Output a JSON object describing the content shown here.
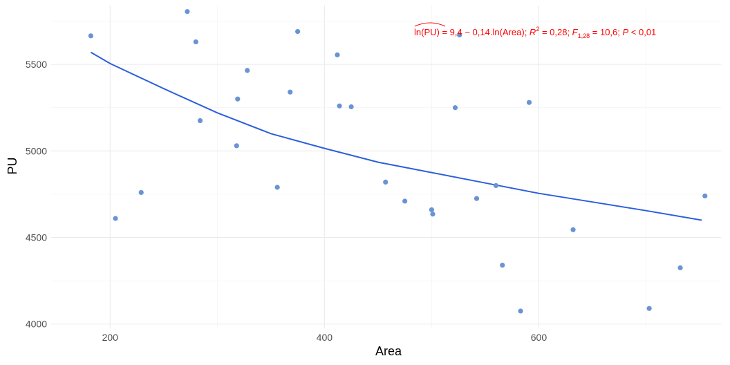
{
  "chart_data": {
    "type": "scatter",
    "title": "",
    "xlabel": "Area",
    "ylabel": "PU",
    "xlim": [
      145,
      770
    ],
    "ylim": [
      3975,
      5840
    ],
    "x_ticks": [
      200,
      400,
      600
    ],
    "y_ticks": [
      4000,
      4500,
      5000,
      5500
    ],
    "x_tick_labels": [
      "200",
      "400",
      "600"
    ],
    "y_tick_labels": [
      "4000",
      "4500",
      "5000",
      "5500"
    ],
    "grid": true,
    "points_color": "#6a93d4",
    "line_color": "#2c5fdc",
    "annotation_color": "#ff0000",
    "points": [
      {
        "x": 182,
        "y": 5665
      },
      {
        "x": 205,
        "y": 4610
      },
      {
        "x": 229,
        "y": 4760
      },
      {
        "x": 272,
        "y": 5805
      },
      {
        "x": 280,
        "y": 5630
      },
      {
        "x": 284,
        "y": 5175
      },
      {
        "x": 318,
        "y": 5030
      },
      {
        "x": 319,
        "y": 5300
      },
      {
        "x": 328,
        "y": 5465
      },
      {
        "x": 356,
        "y": 4790
      },
      {
        "x": 368,
        "y": 5340
      },
      {
        "x": 375,
        "y": 5690
      },
      {
        "x": 412,
        "y": 5555
      },
      {
        "x": 414,
        "y": 5260
      },
      {
        "x": 425,
        "y": 5255
      },
      {
        "x": 457,
        "y": 4820
      },
      {
        "x": 475,
        "y": 4710
      },
      {
        "x": 500,
        "y": 4660
      },
      {
        "x": 501,
        "y": 4635
      },
      {
        "x": 522,
        "y": 5250
      },
      {
        "x": 526,
        "y": 5670
      },
      {
        "x": 542,
        "y": 4725
      },
      {
        "x": 560,
        "y": 4800
      },
      {
        "x": 566,
        "y": 4340
      },
      {
        "x": 583,
        "y": 4075
      },
      {
        "x": 591,
        "y": 5280
      },
      {
        "x": 632,
        "y": 4545
      },
      {
        "x": 703,
        "y": 4090
      },
      {
        "x": 732,
        "y": 4325
      },
      {
        "x": 755,
        "y": 4740
      }
    ],
    "fit": {
      "type": "loess",
      "x": [
        182,
        200,
        250,
        300,
        350,
        400,
        450,
        500,
        550,
        600,
        650,
        700,
        752
      ],
      "y": [
        5570,
        5505,
        5360,
        5220,
        5100,
        5015,
        4935,
        4875,
        4815,
        4755,
        4705,
        4655,
        4600
      ]
    },
    "annotation": {
      "lhs": "ln(PU)",
      "equation": " = 9,4 − 0,14.ln(Area); ",
      "r2_label": "R",
      "r2_sup": "2",
      "r2_value": " = 0,28; ",
      "f_label": "F",
      "f_sub": "1,28",
      "f_value": " = 10,6; ",
      "p_label": "P",
      "p_value": " < 0,01"
    }
  }
}
